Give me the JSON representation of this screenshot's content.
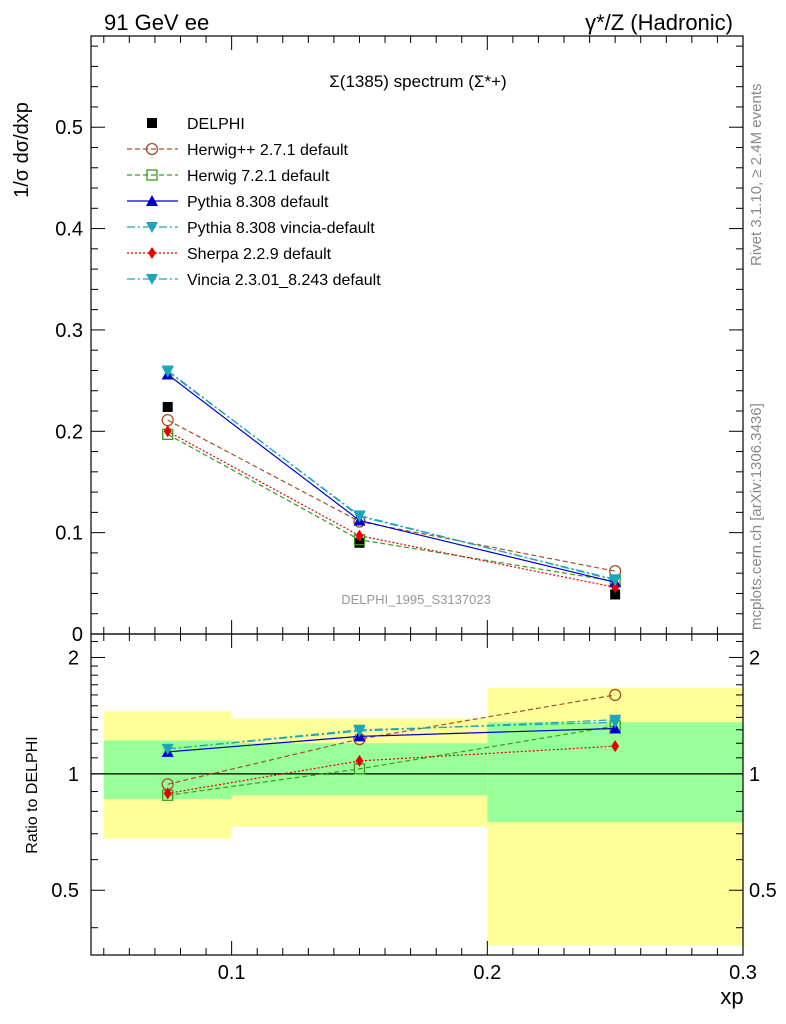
{
  "header": {
    "left": "91 GeV ee",
    "right": "γ*/Z (Hadronic)"
  },
  "side_labels": {
    "rivet": "Rivet 3.1.10, ≥ 2.4M events",
    "mcplots": "mcplots.cern.ch [arXiv:1306.3436]"
  },
  "colors": {
    "data": "#000000",
    "herwigpp": "#a0522d",
    "herwig7": "#3a9b1e",
    "pythia": "#0000cd",
    "pythia_vincia": "#1ba7b8",
    "sherpa": "#e60000",
    "vincia": "#1ba7b8",
    "band_inner": "#99ff99",
    "band_outer": "#ffff99"
  },
  "chart_data": [
    {
      "type": "line",
      "title": "Σ(1385) spectrum (Σ*+)",
      "ylabel": "1/σ dσ/dxp",
      "watermark": "DELPHI_1995_S3137023",
      "xlim": [
        0.045,
        0.3
      ],
      "ylim": [
        0,
        0.59
      ],
      "yticks": [
        "0",
        "0.1",
        "0.2",
        "0.3",
        "0.4",
        "0.5"
      ],
      "x": [
        0.075,
        0.15,
        0.25
      ],
      "series": [
        {
          "name": "DELPHI",
          "key": "data",
          "values": [
            0.224,
            0.09,
            0.039
          ],
          "style": "markers",
          "marker": "square-filled"
        },
        {
          "name": "Herwig++ 2.7.1 default",
          "key": "herwigpp",
          "values": [
            0.211,
            0.111,
            0.062
          ],
          "dash": "5,3",
          "marker": "circle-open"
        },
        {
          "name": "Herwig 7.2.1 default",
          "key": "herwig7",
          "values": [
            0.197,
            0.093,
            0.052
          ],
          "dash": "5,3",
          "marker": "square-open"
        },
        {
          "name": "Pythia 8.308 default",
          "key": "pythia",
          "values": [
            0.256,
            0.112,
            0.051
          ],
          "dash": "",
          "marker": "triangle-up"
        },
        {
          "name": "Pythia 8.308 vincia-default",
          "key": "pythia_vincia",
          "values": [
            0.26,
            0.116,
            0.054
          ],
          "dash": "8,3,2,3",
          "marker": "triangle-down"
        },
        {
          "name": "Sherpa 2.2.9 default",
          "key": "sherpa",
          "values": [
            0.2,
            0.097,
            0.046
          ],
          "dash": "2,2",
          "marker": "diamond"
        },
        {
          "name": "Vincia 2.3.01_8.243 default",
          "key": "vincia",
          "values": [
            0.259,
            0.117,
            0.053
          ],
          "dash": "8,3,2,3",
          "marker": "triangle-down"
        }
      ]
    },
    {
      "type": "line",
      "ylabel": "Ratio to DELPHI",
      "xlabel": "xp",
      "xlim": [
        0.045,
        0.3
      ],
      "ylim": [
        0.34,
        2.3
      ],
      "log_scale": true,
      "yticks": [
        "0.5",
        "1",
        "2"
      ],
      "xticks": [
        "0.1",
        "0.2",
        "0.3"
      ],
      "bands": [
        {
          "x": [
            0.05,
            0.1
          ],
          "inner": [
            0.86,
            1.22
          ],
          "outer": [
            0.68,
            1.45
          ]
        },
        {
          "x": [
            0.1,
            0.2
          ],
          "inner": [
            0.88,
            1.2
          ],
          "outer": [
            0.73,
            1.39
          ]
        },
        {
          "x": [
            0.2,
            0.3
          ],
          "inner": [
            0.75,
            1.36
          ],
          "outer": [
            0.36,
            1.67
          ]
        }
      ],
      "x": [
        0.075,
        0.15,
        0.25
      ],
      "series": [
        {
          "name": "Herwig++ 2.7.1 default",
          "key": "herwigpp",
          "values": [
            0.94,
            1.23,
            1.6
          ]
        },
        {
          "name": "Herwig 7.2.1 default",
          "key": "herwig7",
          "values": [
            0.88,
            1.03,
            1.33
          ]
        },
        {
          "name": "Pythia 8.308 default",
          "key": "pythia",
          "values": [
            1.14,
            1.25,
            1.31
          ]
        },
        {
          "name": "Pythia 8.308 vincia-default",
          "key": "pythia_vincia",
          "values": [
            1.16,
            1.29,
            1.38
          ]
        },
        {
          "name": "Sherpa 2.2.9 default",
          "key": "sherpa",
          "values": [
            0.89,
            1.08,
            1.18
          ]
        },
        {
          "name": "Vincia 2.3.01_8.243 default",
          "key": "vincia",
          "values": [
            1.16,
            1.3,
            1.36
          ]
        }
      ]
    }
  ]
}
